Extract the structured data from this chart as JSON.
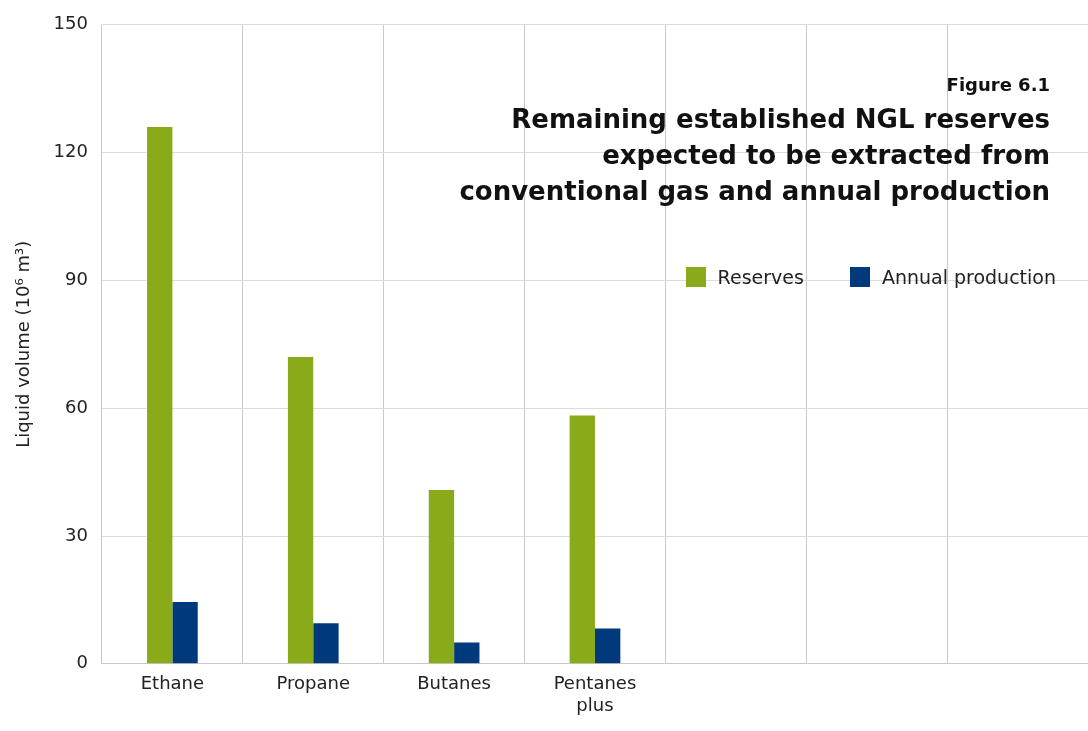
{
  "chart_data": {
    "type": "bar",
    "subtitle": "Figure 6.1",
    "title": "Remaining established NGL reserves expected to be extracted from conventional gas and annual production",
    "ylabel": "Liquid volume (10⁶ m³)",
    "categories": [
      "Ethane",
      "Propane",
      "Butanes",
      "Pentanes plus",
      null,
      null,
      null
    ],
    "series": [
      {
        "name": "Reserves",
        "color": "#8aab19",
        "values": [
          126,
          72,
          40.8,
          58.3,
          null,
          null,
          null
        ]
      },
      {
        "name": "Annual production",
        "color": "#003a7d",
        "values": [
          14.5,
          9.5,
          5,
          8.3,
          null,
          null,
          null
        ]
      }
    ],
    "ylim": [
      0,
      150
    ],
    "yticks": [
      0,
      30,
      60,
      90,
      120,
      150
    ],
    "grid": true,
    "legend": "top right"
  }
}
